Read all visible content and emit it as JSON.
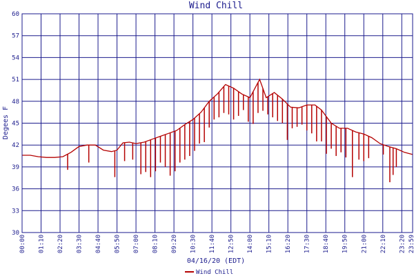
{
  "chart_data": {
    "type": "line",
    "title": "Wind Chill",
    "xlabel": "04/16/20 (EDT)",
    "ylabel": "Degees F",
    "ylim": [
      30,
      60
    ],
    "yticks": [
      "30",
      "33",
      "36",
      "39",
      "42",
      "45",
      "48",
      "51",
      "54",
      "57",
      "60"
    ],
    "xticks": [
      "00:00",
      "01:10",
      "02:20",
      "03:30",
      "04:40",
      "05:50",
      "07:00",
      "08:10",
      "09:20",
      "10:30",
      "11:40",
      "12:50",
      "14:00",
      "15:10",
      "16:20",
      "17:30",
      "18:40",
      "19:50",
      "21:00",
      "22:10",
      "23:20",
      "23:59"
    ],
    "xlim_hours": [
      0,
      24
    ],
    "grid": true,
    "legend_position": "bottom-center",
    "colors": {
      "line": "#b40000",
      "grid": "#1a1a8c",
      "text": "#1a1a8c"
    },
    "series": [
      {
        "name": "Wind Chill",
        "points": [
          [
            0.0,
            40.6
          ],
          [
            0.5,
            40.6
          ],
          [
            1.0,
            40.4
          ],
          [
            1.5,
            40.3
          ],
          [
            2.0,
            40.3
          ],
          [
            2.5,
            40.4
          ],
          [
            3.0,
            41.0
          ],
          [
            3.5,
            41.8
          ],
          [
            4.0,
            42.0
          ],
          [
            4.5,
            42.0
          ],
          [
            5.0,
            41.3
          ],
          [
            5.5,
            41.1
          ],
          [
            5.83,
            41.3
          ],
          [
            6.2,
            42.3
          ],
          [
            6.6,
            42.4
          ],
          [
            7.0,
            42.2
          ],
          [
            7.5,
            42.4
          ],
          [
            8.0,
            42.8
          ],
          [
            8.5,
            43.2
          ],
          [
            9.0,
            43.6
          ],
          [
            9.5,
            44.0
          ],
          [
            10.0,
            44.8
          ],
          [
            10.5,
            45.5
          ],
          [
            11.0,
            46.5
          ],
          [
            11.5,
            48.0
          ],
          [
            12.0,
            49.0
          ],
          [
            12.5,
            50.3
          ],
          [
            13.0,
            49.8
          ],
          [
            13.5,
            49.0
          ],
          [
            14.0,
            48.5
          ],
          [
            14.6,
            51.0
          ],
          [
            15.0,
            48.5
          ],
          [
            15.5,
            49.2
          ],
          [
            16.0,
            48.3
          ],
          [
            16.5,
            47.2
          ],
          [
            17.0,
            47.1
          ],
          [
            17.5,
            47.5
          ],
          [
            18.0,
            47.5
          ],
          [
            18.4,
            46.8
          ],
          [
            19.0,
            45.0
          ],
          [
            19.5,
            44.3
          ],
          [
            20.0,
            44.3
          ],
          [
            20.5,
            43.8
          ],
          [
            21.0,
            43.5
          ],
          [
            21.5,
            43.0
          ],
          [
            22.0,
            42.2
          ],
          [
            22.5,
            41.8
          ],
          [
            23.0,
            41.5
          ],
          [
            23.5,
            41.0
          ],
          [
            24.0,
            40.7
          ]
        ],
        "dips": [
          [
            2.8,
            38.6
          ],
          [
            4.1,
            39.6
          ],
          [
            5.7,
            37.6
          ],
          [
            6.3,
            39.8
          ],
          [
            6.8,
            40.0
          ],
          [
            7.3,
            38.0
          ],
          [
            7.6,
            38.3
          ],
          [
            7.9,
            37.6
          ],
          [
            8.2,
            38.4
          ],
          [
            8.5,
            39.6
          ],
          [
            8.8,
            39.0
          ],
          [
            9.1,
            37.8
          ],
          [
            9.4,
            38.4
          ],
          [
            9.7,
            39.6
          ],
          [
            10.0,
            40.0
          ],
          [
            10.3,
            40.5
          ],
          [
            10.6,
            41.2
          ],
          [
            10.9,
            42.2
          ],
          [
            11.2,
            42.4
          ],
          [
            11.5,
            44.4
          ],
          [
            11.8,
            45.5
          ],
          [
            12.1,
            45.8
          ],
          [
            12.4,
            46.4
          ],
          [
            12.7,
            46.2
          ],
          [
            13.0,
            45.5
          ],
          [
            13.3,
            46.0
          ],
          [
            13.6,
            46.8
          ],
          [
            13.9,
            45.2
          ],
          [
            14.2,
            44.9
          ],
          [
            14.5,
            46.4
          ],
          [
            14.8,
            46.7
          ],
          [
            15.1,
            46.2
          ],
          [
            15.4,
            45.8
          ],
          [
            15.7,
            45.3
          ],
          [
            16.0,
            45.0
          ],
          [
            16.3,
            42.7
          ],
          [
            16.6,
            44.3
          ],
          [
            16.9,
            44.5
          ],
          [
            17.2,
            44.8
          ],
          [
            17.5,
            44.0
          ],
          [
            17.8,
            43.6
          ],
          [
            18.1,
            42.5
          ],
          [
            18.4,
            42.5
          ],
          [
            18.7,
            40.8
          ],
          [
            19.0,
            41.5
          ],
          [
            19.3,
            40.5
          ],
          [
            19.6,
            41.0
          ],
          [
            19.9,
            40.3
          ],
          [
            20.3,
            37.6
          ],
          [
            20.7,
            40.0
          ],
          [
            21.0,
            39.8
          ],
          [
            21.3,
            40.2
          ],
          [
            22.2,
            40.7
          ],
          [
            22.6,
            36.9
          ],
          [
            22.8,
            37.9
          ],
          [
            23.0,
            39.0
          ]
        ]
      }
    ]
  }
}
